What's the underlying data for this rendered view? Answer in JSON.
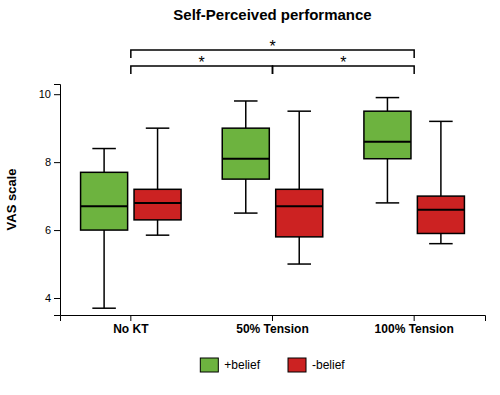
{
  "chart_data": {
    "type": "box",
    "title": "Self-Perceived performance",
    "ylabel": "VAS scale",
    "categories": [
      "No KT",
      "50% Tension",
      "100% Tension"
    ],
    "series": [
      {
        "name": "+belief",
        "color": "#6db33f",
        "values": [
          {
            "low": 3.7,
            "q1": 6.0,
            "median": 6.7,
            "q3": 7.7,
            "high": 8.4
          },
          {
            "low": 6.5,
            "q1": 7.5,
            "median": 8.1,
            "q3": 9.0,
            "high": 9.8
          },
          {
            "low": 6.8,
            "q1": 8.1,
            "median": 8.6,
            "q3": 9.5,
            "high": 9.9
          }
        ]
      },
      {
        "name": "-belief",
        "color": "#cc2222",
        "values": [
          {
            "low": 5.85,
            "q1": 6.3,
            "median": 6.8,
            "q3": 7.2,
            "high": 9.0
          },
          {
            "low": 5.0,
            "q1": 5.8,
            "median": 6.7,
            "q3": 7.2,
            "high": 9.5
          },
          {
            "low": 5.6,
            "q1": 5.9,
            "median": 6.6,
            "q3": 7.0,
            "high": 9.2
          }
        ]
      }
    ],
    "ylim": [
      3.5,
      10.3
    ],
    "yticks": [
      4,
      6,
      8,
      10
    ],
    "annotations": [
      {
        "text": "*",
        "from": "No KT",
        "to": "100% Tension"
      },
      {
        "text": "*",
        "from": "No KT",
        "to": "50% Tension"
      },
      {
        "text": "*",
        "from": "50% Tension",
        "to": "100% Tension"
      }
    ],
    "grid": false,
    "legend": "bottom"
  }
}
